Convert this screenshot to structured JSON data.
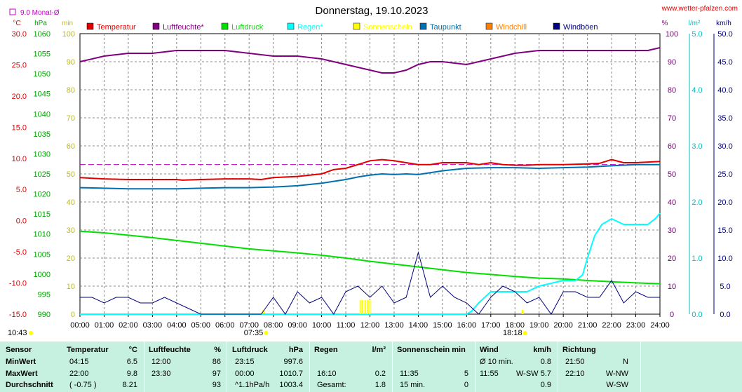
{
  "header": {
    "title": "Donnerstag, 19.10.2023",
    "site": "www.wetter-pfalzen.com",
    "legend_small": "9.0 Monat-Ø"
  },
  "axes": {
    "unit_labels": [
      "°C",
      "hPa",
      "min",
      "%",
      "l/m²",
      "km/h"
    ],
    "temp_ticks": [
      "30.0",
      "25.0",
      "20.0",
      "15.0",
      "10.0",
      "5.0",
      "0.0",
      "-5.0",
      "-10.0",
      "-15.0"
    ],
    "press_ticks": [
      "1060",
      "1055",
      "1050",
      "1045",
      "1040",
      "1035",
      "1030",
      "1025",
      "1020",
      "1015",
      "1010",
      "1005",
      "1000",
      "995",
      "990"
    ],
    "min_ticks": [
      "100",
      "90",
      "80",
      "70",
      "60",
      "50",
      "40",
      "30",
      "20",
      "10",
      "0"
    ],
    "pct_ticks": [
      "100",
      "90",
      "80",
      "70",
      "60",
      "50",
      "40",
      "30",
      "20",
      "10",
      "0"
    ],
    "rain_ticks": [
      "5.0",
      "4.0",
      "3.0",
      "2.0",
      "1.0",
      "0.0"
    ],
    "wind_ticks": [
      "50.0",
      "45.0",
      "40.0",
      "35.0",
      "30.0",
      "25.0",
      "20.0",
      "15.0",
      "10.0",
      "5.0",
      "0.0"
    ],
    "x_ticks": [
      "00:00",
      "01:00",
      "02:00",
      "03:00",
      "04:00",
      "05:00",
      "06:00",
      "07:00",
      "08:00",
      "09:00",
      "10:00",
      "11:00",
      "12:00",
      "13:00",
      "14:00",
      "15:00",
      "16:00",
      "17:00",
      "18:00",
      "19:00",
      "20:00",
      "21:00",
      "22:00",
      "23:00",
      "24:00"
    ],
    "sunrise": "07:35",
    "sunset": "18:18",
    "daylength": "10:43"
  },
  "colors": {
    "temperature": "#e00000",
    "humidity": "#800080",
    "pressure": "#00e000",
    "rain": "#00ffff",
    "sunshine": "#ffff00",
    "dewpoint": "#0070b0",
    "windchill": "#ff8000",
    "gusts": "#000080",
    "month_avg": "#c000c0"
  },
  "chart_data": {
    "type": "line",
    "title": "Donnerstag, 19.10.2023",
    "x_unit": "hour",
    "xlim": [
      0,
      24
    ],
    "month_avg_temp": 9.0,
    "series": [
      {
        "name": "Temperatur",
        "unit": "°C",
        "axis": "temp",
        "x": [
          0,
          1,
          2,
          3,
          4,
          4.25,
          5,
          6,
          7,
          7.5,
          8,
          9,
          10,
          10.5,
          11,
          11.5,
          12,
          12.5,
          13,
          13.5,
          14,
          14.5,
          15,
          15.5,
          16,
          16.5,
          17,
          17.5,
          18,
          18.5,
          19,
          20,
          21,
          21.5,
          22,
          22.5,
          23,
          23.5,
          24
        ],
        "y": [
          6.9,
          6.7,
          6.6,
          6.6,
          6.6,
          6.5,
          6.6,
          6.7,
          6.7,
          6.6,
          6.9,
          7.1,
          7.5,
          8.2,
          8.4,
          9.0,
          9.6,
          9.8,
          9.6,
          9.3,
          9.0,
          9.0,
          9.3,
          9.3,
          9.3,
          9.0,
          9.3,
          9.0,
          8.9,
          8.9,
          9.0,
          9.0,
          9.1,
          9.2,
          9.8,
          9.3,
          9.3,
          9.4,
          9.5
        ]
      },
      {
        "name": "Luftfeuchte*",
        "unit": "%",
        "axis": "pct",
        "x": [
          0,
          1,
          2,
          3,
          4,
          5,
          6,
          7,
          8,
          9,
          10,
          11,
          11.5,
          12,
          12.5,
          13,
          13.5,
          14,
          14.5,
          15,
          16,
          17,
          18,
          19,
          20,
          21,
          22,
          23,
          23.5,
          24
        ],
        "y": [
          90,
          92,
          93,
          93,
          94,
          94,
          94,
          93,
          92,
          92,
          91,
          89,
          88,
          87,
          86,
          86,
          87,
          89,
          90,
          90,
          89,
          91,
          93,
          94,
          94,
          94,
          94,
          94,
          94,
          95
        ]
      },
      {
        "name": "Luftdruck",
        "unit": "hPa",
        "axis": "press",
        "x": [
          0,
          1,
          2,
          3,
          4,
          5,
          6,
          7,
          8,
          9,
          10,
          11,
          12,
          13,
          14,
          15,
          16,
          17,
          18,
          19,
          20,
          21,
          22,
          23,
          24
        ],
        "y": [
          1010.7,
          1010.3,
          1009.7,
          1009.1,
          1008.4,
          1007.7,
          1007.0,
          1006.3,
          1005.8,
          1005.3,
          1004.7,
          1004.0,
          1003.2,
          1002.5,
          1001.8,
          1001.1,
          1000.4,
          999.9,
          999.4,
          999.0,
          998.8,
          998.4,
          998.1,
          997.8,
          997.6
        ]
      },
      {
        "name": "Taupunkt",
        "unit": "°C",
        "axis": "temp",
        "x": [
          0,
          1,
          2,
          3,
          4,
          5,
          6,
          7,
          8,
          9,
          10,
          11,
          11.5,
          12,
          12.5,
          13,
          13.5,
          14,
          14.5,
          15,
          15.5,
          16,
          17,
          18,
          19,
          20,
          21,
          22,
          23,
          24
        ],
        "y": [
          5.3,
          5.2,
          5.1,
          5.1,
          5.1,
          5.2,
          5.3,
          5.3,
          5.4,
          5.6,
          6.0,
          6.6,
          7.0,
          7.3,
          7.5,
          7.4,
          7.5,
          7.4,
          7.7,
          8.0,
          8.2,
          8.4,
          8.5,
          8.5,
          8.4,
          8.5,
          8.6,
          8.8,
          9.0,
          9.0
        ]
      },
      {
        "name": "Regen*",
        "unit": "l/m²",
        "axis": "rain",
        "x": [
          0,
          16,
          16.2,
          16.5,
          17,
          17.5,
          18,
          18.5,
          19,
          20,
          20.5,
          20.8,
          21,
          21.3,
          21.6,
          22,
          22.5,
          23,
          23.5,
          23.8,
          24
        ],
        "y": [
          0,
          0,
          0.05,
          0.2,
          0.4,
          0.4,
          0.4,
          0.4,
          0.5,
          0.6,
          0.6,
          0.7,
          1.0,
          1.4,
          1.6,
          1.7,
          1.6,
          1.6,
          1.6,
          1.7,
          1.8
        ]
      },
      {
        "name": "Sonnenschein",
        "unit": "min",
        "axis": "min",
        "x": [
          11.6,
          11.7,
          11.8,
          11.9,
          12.0
        ],
        "y": [
          5,
          5,
          5,
          5,
          5
        ]
      },
      {
        "name": "Windböen",
        "unit": "km/h",
        "axis": "wind",
        "x": [
          0,
          0.5,
          1,
          1.5,
          2,
          2.5,
          3,
          3.5,
          4,
          4.5,
          5,
          5.5,
          6,
          6.5,
          7,
          7.5,
          8,
          8.5,
          9,
          9.5,
          10,
          10.5,
          11,
          11.5,
          12,
          12.5,
          13,
          13.5,
          14,
          14.5,
          15,
          15.5,
          16,
          16.5,
          17,
          17.5,
          18,
          18.5,
          19,
          19.5,
          20,
          20.5,
          21,
          21.5,
          22,
          22.5,
          23,
          23.5,
          24
        ],
        "y": [
          3,
          3,
          2,
          3,
          3,
          2,
          2,
          3,
          2,
          1,
          0,
          0,
          0,
          0,
          0,
          0,
          3,
          0,
          4,
          2,
          3,
          0,
          4,
          5,
          3,
          5,
          2,
          3,
          11,
          3,
          5,
          3,
          2,
          0,
          3,
          5,
          4,
          2,
          3,
          0,
          4,
          4,
          3,
          3,
          6,
          2,
          4,
          3,
          3
        ]
      },
      {
        "name": "Windchill",
        "unit": "°C",
        "axis": "temp",
        "x": [],
        "y": []
      }
    ]
  },
  "stats": {
    "columns": [
      {
        "header": "Sensor",
        "unit": "",
        "rows": [
          "MinWert",
          "MaxWert",
          "Durchschnitt"
        ]
      },
      {
        "header": "Temperatur",
        "unit": "°C",
        "rows": [
          [
            "04:15",
            "6.5"
          ],
          [
            "22:00",
            "9.8"
          ],
          [
            "( -0.75 )",
            "8.21"
          ]
        ]
      },
      {
        "header": "Luftfeuchte",
        "unit": "%",
        "rows": [
          [
            "12:00",
            "86"
          ],
          [
            "23:30",
            "97"
          ],
          [
            "",
            "93"
          ]
        ]
      },
      {
        "header": "Luftdruck",
        "unit": "hPa",
        "rows": [
          [
            "23:15",
            "997.6"
          ],
          [
            "00:00",
            "1010.7"
          ],
          [
            "^1.1hPa/h",
            "1003.4"
          ]
        ]
      },
      {
        "header": "Regen",
        "unit": "l/m²",
        "rows": [
          [
            "",
            ""
          ],
          [
            "16:10",
            "0.2"
          ],
          [
            "Gesamt:",
            "1.8"
          ]
        ]
      },
      {
        "header": "Sonnenschein min",
        "unit": "",
        "rows": [
          [
            "",
            ""
          ],
          [
            "11:35",
            "5"
          ],
          [
            "15 min.",
            "0"
          ]
        ]
      },
      {
        "header": "Wind",
        "unit": "km/h",
        "rows": [
          [
            "Ø 10 min.",
            "",
            "0.8"
          ],
          [
            "11:55",
            "W-SW",
            "5.7"
          ],
          [
            "",
            "",
            "0.9"
          ]
        ]
      },
      {
        "header": "Richtung",
        "unit": "",
        "rows": [
          [
            "21:50",
            "N"
          ],
          [
            "22:10",
            "W-NW"
          ],
          [
            "",
            "W-SW"
          ]
        ]
      }
    ]
  }
}
